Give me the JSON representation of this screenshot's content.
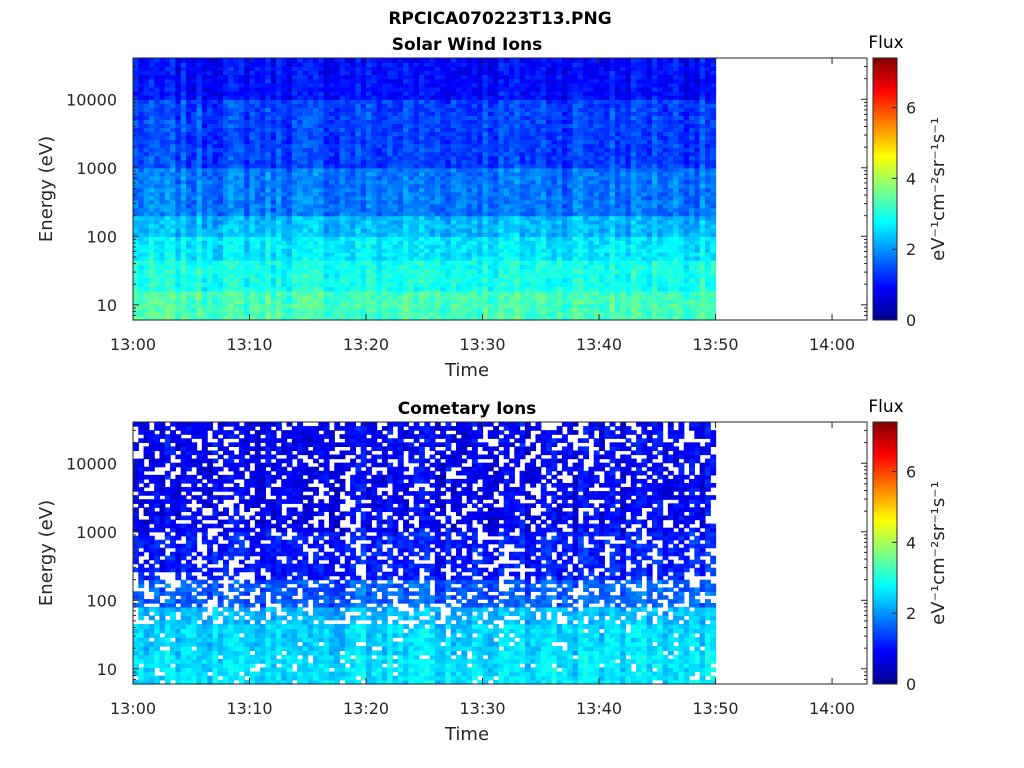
{
  "figure_title": "RPCICA070223T13.PNG",
  "chart_data": [
    {
      "type": "heatmap",
      "title": "Solar Wind Ions",
      "xlabel": "Time",
      "ylabel": "Energy (eV)",
      "x_ticks": [
        "13:00",
        "13:10",
        "13:20",
        "13:30",
        "13:40",
        "13:50",
        "14:00"
      ],
      "x_range": [
        "13:00",
        "14:03"
      ],
      "data_end": "13:50",
      "y_scale": "log",
      "y_ticks": [
        10,
        100,
        1000,
        10000
      ],
      "y_tick_labels": [
        "10",
        "100",
        "1000",
        "10000"
      ],
      "y_range": [
        6,
        40000
      ],
      "colorbar": {
        "title": "Flux",
        "label": "eV⁻¹cm⁻²sr⁻¹s⁻¹",
        "range": [
          0,
          7.4
        ],
        "ticks": [
          "0",
          "2",
          "4",
          "6"
        ],
        "colormap": "jet"
      },
      "bands": [
        {
          "energy": [
            6,
            16
          ],
          "mean_flux": 3.3
        },
        {
          "energy": [
            16,
            45
          ],
          "mean_flux": 2.95
        },
        {
          "energy": [
            45,
            100
          ],
          "mean_flux": 2.65
        },
        {
          "energy": [
            100,
            200
          ],
          "mean_flux": 2.3
        },
        {
          "energy": [
            200,
            1000
          ],
          "mean_flux": 1.8
        },
        {
          "energy": [
            1000,
            10000
          ],
          "mean_flux": 1.4
        },
        {
          "energy": [
            10000,
            40000
          ],
          "mean_flux": 1.0
        }
      ],
      "gap_probability": 0
    },
    {
      "type": "heatmap",
      "title": "Cometary Ions",
      "xlabel": "Time",
      "ylabel": "Energy (eV)",
      "x_ticks": [
        "13:00",
        "13:10",
        "13:20",
        "13:30",
        "13:40",
        "13:50",
        "14:00"
      ],
      "x_range": [
        "13:00",
        "14:03"
      ],
      "data_end": "13:50",
      "y_scale": "log",
      "y_ticks": [
        10,
        100,
        1000,
        10000
      ],
      "y_tick_labels": [
        "10",
        "100",
        "1000",
        "10000"
      ],
      "y_range": [
        6,
        40000
      ],
      "colorbar": {
        "title": "Flux",
        "label": "eV⁻¹cm⁻²sr⁻¹s⁻¹",
        "range": [
          0,
          7.4
        ],
        "ticks": [
          "0",
          "2",
          "4",
          "6"
        ],
        "colormap": "jet"
      },
      "bands": [
        {
          "energy": [
            6,
            16
          ],
          "mean_flux": 2.6
        },
        {
          "energy": [
            16,
            45
          ],
          "mean_flux": 2.5
        },
        {
          "energy": [
            45,
            80
          ],
          "mean_flux": 2.3
        },
        {
          "energy": [
            80,
            200
          ],
          "mean_flux": 1.6
        },
        {
          "energy": [
            200,
            1000
          ],
          "mean_flux": 1.1
        },
        {
          "energy": [
            1000,
            40000
          ],
          "mean_flux": 0.85
        }
      ],
      "gap_probability": 0.3
    }
  ]
}
